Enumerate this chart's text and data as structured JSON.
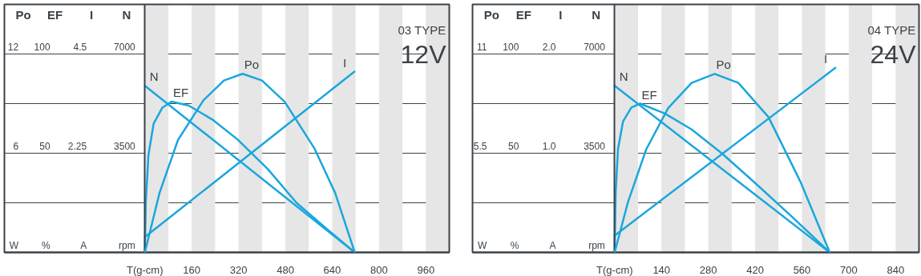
{
  "chart_data": [
    {
      "type": "line",
      "annotations": [
        "03 TYPE",
        "12V"
      ],
      "xlim": [
        -480,
        1040
      ],
      "xticks": [
        {
          "value": 0,
          "label": "T(g-cm)"
        },
        160,
        320,
        480,
        640,
        800,
        960
      ],
      "ylabel": "N",
      "ylim": [
        0,
        8750
      ],
      "yticks": [
        {
          "value": 0,
          "label": "rpm"
        },
        {
          "value": 1750,
          "label": null
        },
        3500,
        {
          "value": 5250,
          "label": null
        },
        7000
      ],
      "y2label": "I",
      "y2lim": [
        0,
        5.625
      ],
      "y2ticks": [
        {
          "value": 0,
          "label": "A"
        },
        2.25,
        4.5
      ],
      "y3label": "EF",
      "y3lim": [
        0,
        125
      ],
      "y3ticks": [
        {
          "value": 0,
          "label": "%"
        },
        50,
        100
      ],
      "grid": "y",
      "bands": [
        {
          "axis": "x",
          "from": 0,
          "to": 80,
          "color": "#e6e6e6"
        },
        {
          "axis": "x",
          "from": 160,
          "to": 240,
          "color": "#e6e6e6"
        },
        {
          "axis": "x",
          "from": 320,
          "to": 400,
          "color": "#e6e6e6"
        },
        {
          "axis": "x",
          "from": 480,
          "to": 560,
          "color": "#e6e6e6"
        },
        {
          "axis": "x",
          "from": 640,
          "to": 720,
          "color": "#e6e6e6"
        },
        {
          "axis": "x",
          "from": 800,
          "to": 880,
          "color": "#e6e6e6"
        },
        {
          "axis": "x",
          "from": 960,
          "to": 1040,
          "color": "#e6e6e6"
        }
      ],
      "series": [
        {
          "name": "N",
          "color": "#1aa7dd",
          "x": [
            0,
            717
          ],
          "values": [
            5880,
            0
          ]
        },
        {
          "name": "I",
          "color": "#1aa7dd",
          "axis": "y2",
          "x": [
            0,
            716
          ],
          "values": [
            0.35,
            4.1
          ]
        },
        {
          "name": "EF",
          "color": "#1aa7dd",
          "axis": "y3",
          "x": [
            0,
            3,
            12,
            30,
            60,
            91,
            150,
            230,
            316,
            420,
            518,
            620,
            717
          ],
          "values": [
            0,
            25,
            49,
            65,
            73,
            76,
            74,
            67,
            57,
            42,
            25,
            12,
            0
          ]
        }
      ]
    },
    {
      "type": "line",
      "tick_labels": "y",
      "xlim": [
        -480,
        1040
      ],
      "ylabel": "Po",
      "ylim": [
        0,
        15
      ],
      "yticks": [
        {
          "value": 0,
          "label": "W"
        },
        6,
        12
      ],
      "series": [
        {
          "name": "Po",
          "color": "#1aa7dd",
          "x": [
            0,
            50,
            113,
            200,
            270,
            334,
            400,
            478,
            579,
            650,
            717
          ],
          "values": [
            0,
            3.6,
            6.8,
            9.2,
            10.4,
            10.8,
            10.4,
            9.1,
            6.3,
            3.6,
            0
          ]
        }
      ]
    },
    {
      "type": "line",
      "annotations": [
        "04 TYPE",
        "24V"
      ],
      "xlim": [
        -425,
        910
      ],
      "xticks": [
        {
          "value": 0,
          "label": "T(g-cm)"
        },
        140,
        280,
        420,
        560,
        700,
        840
      ],
      "ylabel": "N",
      "ylim": [
        0,
        8750
      ],
      "yticks": [
        {
          "value": 0,
          "label": "rpm"
        },
        {
          "value": 1750,
          "label": null
        },
        3500,
        {
          "value": 5250,
          "label": null
        },
        7000
      ],
      "y2label": "I",
      "y2lim": [
        0,
        2.5
      ],
      "y2ticks": [
        {
          "value": 0,
          "label": "A"
        },
        {
          "value": 1,
          "label": "1.0"
        },
        {
          "value": 2,
          "label": "2.0"
        }
      ],
      "y3label": "EF",
      "y3lim": [
        0,
        125
      ],
      "y3ticks": [
        {
          "value": 0,
          "label": "%"
        },
        50,
        100
      ],
      "grid": "y",
      "bands": [
        {
          "axis": "x",
          "from": 0,
          "to": 70,
          "color": "#e6e6e6"
        },
        {
          "axis": "x",
          "from": 140,
          "to": 210,
          "color": "#e6e6e6"
        },
        {
          "axis": "x",
          "from": 280,
          "to": 350,
          "color": "#e6e6e6"
        },
        {
          "axis": "x",
          "from": 420,
          "to": 490,
          "color": "#e6e6e6"
        },
        {
          "axis": "x",
          "from": 560,
          "to": 630,
          "color": "#e6e6e6"
        },
        {
          "axis": "x",
          "from": 700,
          "to": 770,
          "color": "#e6e6e6"
        },
        {
          "axis": "x",
          "from": 840,
          "to": 910,
          "color": "#e6e6e6"
        }
      ],
      "series": [
        {
          "name": "N",
          "color": "#1aa7dd",
          "x": [
            0,
            643
          ],
          "values": [
            5880,
            0
          ]
        },
        {
          "name": "I",
          "color": "#1aa7dd",
          "axis": "y2",
          "x": [
            0,
            660
          ],
          "values": [
            0.17,
            1.86
          ]
        },
        {
          "name": "EF",
          "color": "#1aa7dd",
          "axis": "y3",
          "x": [
            0,
            3,
            10,
            25,
            50,
            76,
            150,
            230,
            320,
            420,
            530,
            643
          ],
          "values": [
            0,
            30,
            52,
            66,
            73,
            75,
            70,
            62,
            50,
            35,
            18,
            0
          ]
        }
      ]
    },
    {
      "type": "line",
      "tick_labels": "y",
      "xlim": [
        -425,
        910
      ],
      "ylabel": "Po",
      "ylim": [
        0,
        13.75
      ],
      "yticks": [
        {
          "value": 0,
          "label": "W"
        },
        5.5,
        11
      ],
      "series": [
        {
          "name": "Po",
          "color": "#1aa7dd",
          "x": [
            0,
            40,
            94,
            160,
            230,
            299,
            370,
            460,
            556,
            643
          ],
          "values": [
            0,
            2.8,
            5.7,
            8.0,
            9.4,
            9.9,
            9.4,
            7.5,
            3.9,
            0
          ]
        }
      ]
    }
  ]
}
